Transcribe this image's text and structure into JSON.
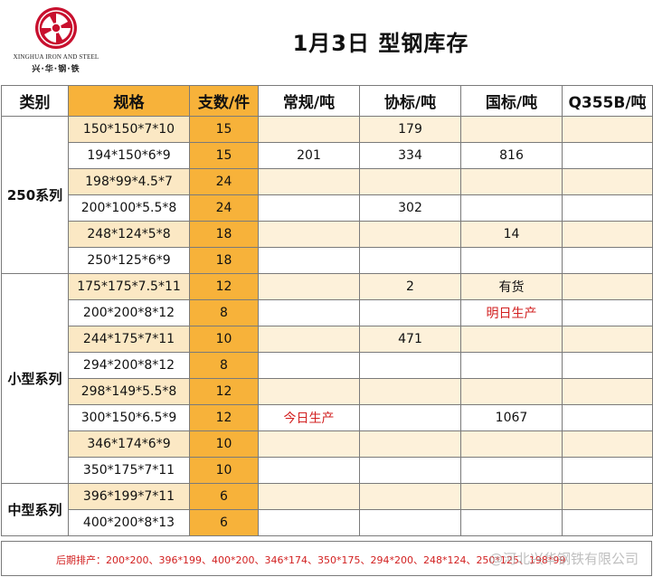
{
  "logo": {
    "name_en": "XINGHUA IRON AND STEEL",
    "name_cn": "兴·华·钢·铁",
    "brand_color": "#c8102e"
  },
  "title": "1月3日  型钢库存",
  "table": {
    "headers": [
      "类别",
      "规格",
      "支数/件",
      "常规/吨",
      "协标/吨",
      "国标/吨",
      "Q355B/吨"
    ],
    "groups": [
      {
        "category": "250系列",
        "rows": [
          {
            "spec": "150*150*7*10",
            "qty": "15",
            "regular": "",
            "assoc": "179",
            "national": "",
            "q355b": ""
          },
          {
            "spec": "194*150*6*9",
            "qty": "15",
            "regular": "201",
            "assoc": "334",
            "national": "816",
            "q355b": ""
          },
          {
            "spec": "198*99*4.5*7",
            "qty": "24",
            "regular": "",
            "assoc": "",
            "national": "",
            "q355b": ""
          },
          {
            "spec": "200*100*5.5*8",
            "qty": "24",
            "regular": "",
            "assoc": "302",
            "national": "",
            "q355b": ""
          },
          {
            "spec": "248*124*5*8",
            "qty": "18",
            "regular": "",
            "assoc": "",
            "national": "14",
            "q355b": ""
          },
          {
            "spec": "250*125*6*9",
            "qty": "18",
            "regular": "",
            "assoc": "",
            "national": "",
            "q355b": ""
          }
        ]
      },
      {
        "category": "小型系列",
        "rows": [
          {
            "spec": "175*175*7.5*11",
            "qty": "12",
            "regular": "",
            "assoc": "2",
            "national": "有货",
            "q355b": ""
          },
          {
            "spec": "200*200*8*12",
            "qty": "8",
            "regular": "",
            "assoc": "",
            "national": "明日生产",
            "q355b": ""
          },
          {
            "spec": "244*175*7*11",
            "qty": "10",
            "regular": "",
            "assoc": "471",
            "national": "",
            "q355b": ""
          },
          {
            "spec": "294*200*8*12",
            "qty": "8",
            "regular": "",
            "assoc": "",
            "national": "",
            "q355b": ""
          },
          {
            "spec": "298*149*5.5*8",
            "qty": "12",
            "regular": "",
            "assoc": "",
            "national": "",
            "q355b": ""
          },
          {
            "spec": "300*150*6.5*9",
            "qty": "12",
            "regular": "今日生产",
            "assoc": "",
            "national": "1067",
            "q355b": ""
          },
          {
            "spec": "346*174*6*9",
            "qty": "10",
            "regular": "",
            "assoc": "",
            "national": "",
            "q355b": ""
          },
          {
            "spec": "350*175*7*11",
            "qty": "10",
            "regular": "",
            "assoc": "",
            "national": "",
            "q355b": ""
          }
        ]
      },
      {
        "category": "中型系列",
        "rows": [
          {
            "spec": "396*199*7*11",
            "qty": "6",
            "regular": "",
            "assoc": "",
            "national": "",
            "q355b": ""
          },
          {
            "spec": "400*200*8*13",
            "qty": "6",
            "regular": "",
            "assoc": "",
            "national": "",
            "q355b": ""
          }
        ]
      }
    ],
    "red_values": [
      "明日生产",
      "今日生产"
    ]
  },
  "footer": {
    "schedule": "后期排产：200*200、396*199、400*200、346*174、350*175、294*200、248*124、250*125、198*99",
    "watermark": "@河北兴华钢铁有限公司"
  }
}
